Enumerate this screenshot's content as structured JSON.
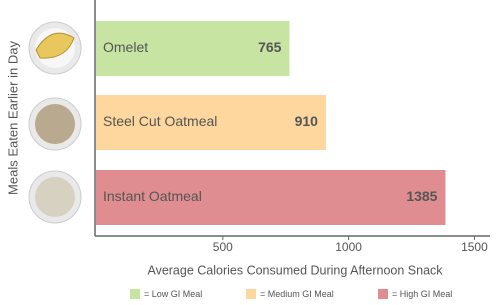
{
  "chart_data": {
    "type": "bar",
    "orientation": "horizontal",
    "categories": [
      "Omelet",
      "Steel Cut Oatmeal",
      "Instant Oatmeal"
    ],
    "values": [
      765,
      910,
      1385
    ],
    "colors": [
      "#c7e4a2",
      "#fdd79e",
      "#e08d91"
    ],
    "xlabel": "Average Calories Consumed During Afternoon Snack",
    "ylabel": "Meals Eaten Earlier in Day",
    "xlim": [
      0,
      1550
    ],
    "xticks": [
      500,
      1000,
      1500
    ],
    "legend": [
      {
        "label": "= Low GI Meal",
        "color": "#c7e4a2"
      },
      {
        "label": "= Medium GI Meal",
        "color": "#fdd79e"
      },
      {
        "label": "= High GI Meal",
        "color": "#e08d91"
      }
    ]
  }
}
